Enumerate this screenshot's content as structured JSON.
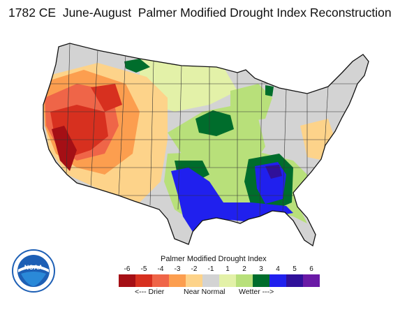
{
  "title": "1782 CE  June-August  Palmer Modified Drought Index Reconstruction",
  "legend": {
    "title": "Palmer Modified Drought Index",
    "ticks": [
      "-6",
      "-5",
      "-4",
      "-3",
      "-2",
      "-1",
      "1",
      "2",
      "3",
      "4",
      "5",
      "6"
    ],
    "colors": [
      "#a50f15",
      "#d7301f",
      "#ef6548",
      "#fc9e4f",
      "#fdd38a",
      "#d3d3d3",
      "#e3f1a8",
      "#b8e07a",
      "#006d2c",
      "#2020ee",
      "#30109a",
      "#6a1aa6"
    ],
    "drier": "<--- Drier",
    "normal": "Near Normal",
    "wetter": "Wetter --->"
  },
  "logo": {
    "text": "NOAA",
    "icon": "noaa-logo"
  }
}
